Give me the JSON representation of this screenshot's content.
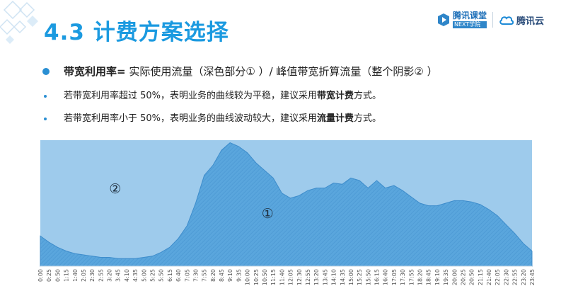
{
  "title": "4.3 计费方案选择",
  "logos": {
    "ketang_name": "腾讯课堂",
    "ketang_sub": "NEXT学院",
    "cloud_name": "腾讯云",
    "icon_ketang": "play-cube-icon",
    "icon_cloud": "cloud-icon"
  },
  "bullets": [
    {
      "bold": "带宽利用率=",
      "text": " 实际使用流量（深色部分① ）/ 峰值带宽折算流量（整个阴影② ）"
    },
    {
      "pre": "若带宽利用率超过 50%，表明业务的曲线较为平稳，建议采用",
      "bold": "带宽计费",
      "post": "方式。"
    },
    {
      "pre": "若带宽利用率小于 50%，表明业务的曲线波动较大，建议采用",
      "bold": "流量计费",
      "post": "方式。"
    }
  ],
  "colors": {
    "accent": "#1b9ae0",
    "shadow_area": "#9ecbec",
    "usage_area": "#5aa6dd"
  },
  "chart_data": {
    "type": "area",
    "title": "",
    "xlabel": "",
    "ylabel": "",
    "x_ticks": [
      "0:00",
      "0:25",
      "0:50",
      "1:15",
      "1:40",
      "2:05",
      "2:30",
      "2:55",
      "3:20",
      "3:45",
      "4:10",
      "4:35",
      "5:00",
      "5:25",
      "5:50",
      "6:15",
      "6:40",
      "7:05",
      "7:30",
      "7:55",
      "8:20",
      "8:45",
      "9:10",
      "9:35",
      "10:00",
      "10:25",
      "10:50",
      "11:15",
      "11:40",
      "12:05",
      "12:30",
      "12:55",
      "13:20",
      "13:45",
      "14:10",
      "14:35",
      "15:00",
      "15:25",
      "15:50",
      "16:15",
      "16:40",
      "17:05",
      "17:30",
      "17:55",
      "18:20",
      "18:45",
      "19:10",
      "19:35",
      "20:00",
      "20:25",
      "20:50",
      "21:15",
      "21:40",
      "22:05",
      "22:30",
      "22:55",
      "23:20",
      "23:45"
    ],
    "region_labels": [
      "②",
      "①"
    ],
    "peak": 100,
    "ylim": [
      0,
      100
    ],
    "grid": false,
    "series": [
      {
        "x": [
          "0:00",
          "0:25",
          "0:50",
          "1:15",
          "1:40",
          "2:05",
          "2:30",
          "2:55",
          "3:20",
          "3:45",
          "4:10",
          "4:35",
          "5:00",
          "5:25",
          "5:50",
          "6:15",
          "6:40",
          "7:05",
          "7:30",
          "7:55",
          "8:20",
          "8:45",
          "9:10",
          "9:35",
          "10:00",
          "10:25",
          "10:50",
          "11:15",
          "11:40",
          "12:05",
          "12:30",
          "12:55",
          "13:20",
          "13:45",
          "14:10",
          "14:35",
          "15:00",
          "15:25",
          "15:50",
          "16:15",
          "16:40",
          "17:05",
          "17:30",
          "17:55",
          "18:20",
          "18:45",
          "19:10",
          "19:35",
          "20:00",
          "20:25",
          "20:50",
          "21:15",
          "21:40",
          "22:05",
          "22:30",
          "22:55",
          "23:20",
          "23:45"
        ],
        "values": [
          24,
          19,
          15,
          12,
          10,
          9,
          8,
          7,
          7,
          6,
          6,
          6,
          7,
          8,
          11,
          15,
          22,
          32,
          50,
          72,
          80,
          92,
          98,
          95,
          90,
          82,
          76,
          70,
          58,
          54,
          56,
          60,
          62,
          62,
          66,
          65,
          70,
          68,
          62,
          68,
          62,
          64,
          60,
          55,
          50,
          48,
          48,
          50,
          52,
          52,
          51,
          49,
          45,
          40,
          33,
          26,
          18,
          12
        ]
      }
    ]
  }
}
